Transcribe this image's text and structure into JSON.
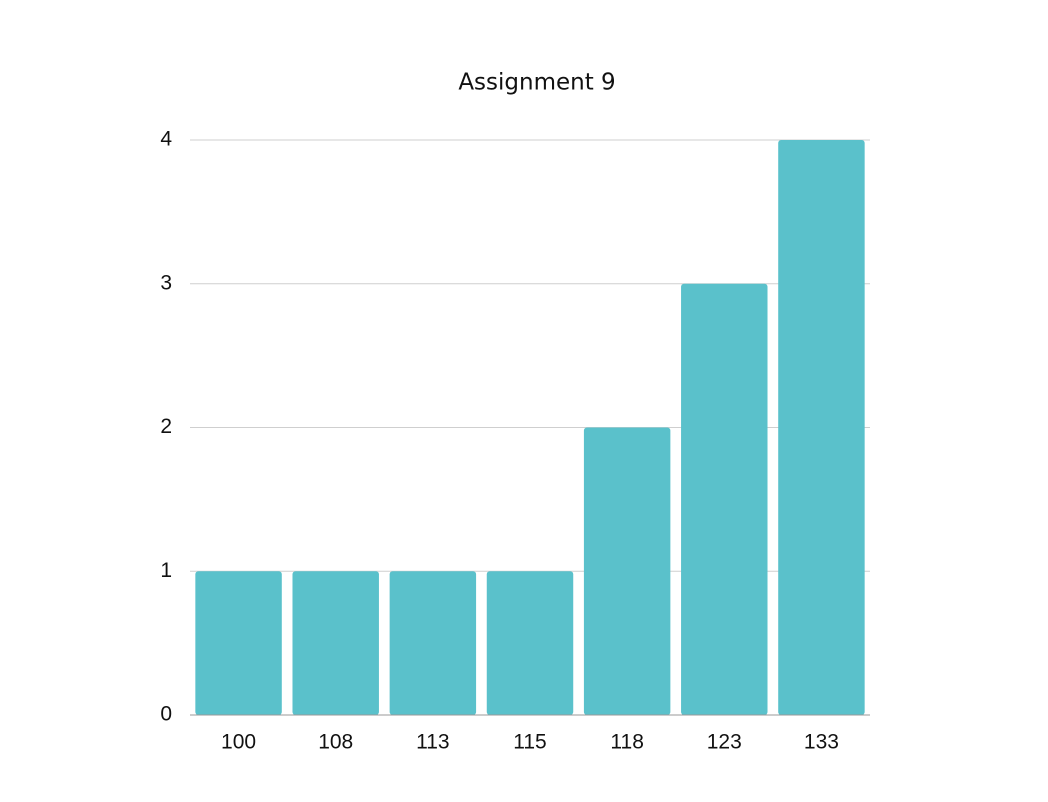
{
  "chart_data": {
    "type": "bar",
    "title": "Assignment 9",
    "categories": [
      "100",
      "108",
      "113",
      "115",
      "118",
      "123",
      "133"
    ],
    "values": [
      1,
      1,
      1,
      1,
      2,
      3,
      4
    ],
    "color": "#5ac1cb",
    "ylim": [
      0,
      4
    ],
    "yticks": [
      0,
      1,
      2,
      3,
      4
    ],
    "grid": true
  }
}
